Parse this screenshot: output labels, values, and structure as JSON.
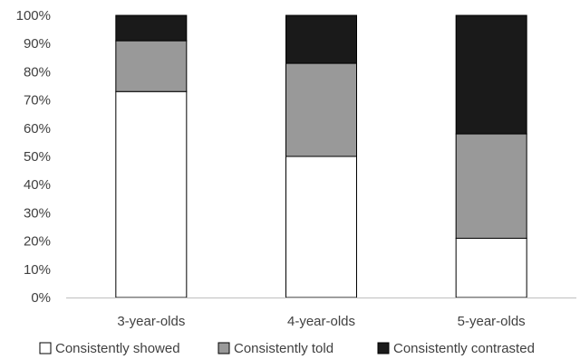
{
  "chart_data": {
    "type": "bar",
    "stacked": true,
    "categories": [
      "3-year-olds",
      "4-year-olds",
      "5-year-olds"
    ],
    "series": [
      {
        "name": "Consistently showed",
        "values": [
          73,
          50,
          21
        ],
        "color": "#ffffff"
      },
      {
        "name": "Consistently told",
        "values": [
          18,
          33,
          37
        ],
        "color": "#999999"
      },
      {
        "name": "Consistently contrasted",
        "values": [
          9,
          17,
          42
        ],
        "color": "#1a1a1a"
      }
    ],
    "ylim": [
      0,
      100
    ],
    "yticks": [
      "0%",
      "10%",
      "20%",
      "30%",
      "40%",
      "50%",
      "60%",
      "70%",
      "80%",
      "90%",
      "100%"
    ],
    "grid": false,
    "legend_position": "bottom",
    "title": "",
    "xlabel": "",
    "ylabel": ""
  }
}
